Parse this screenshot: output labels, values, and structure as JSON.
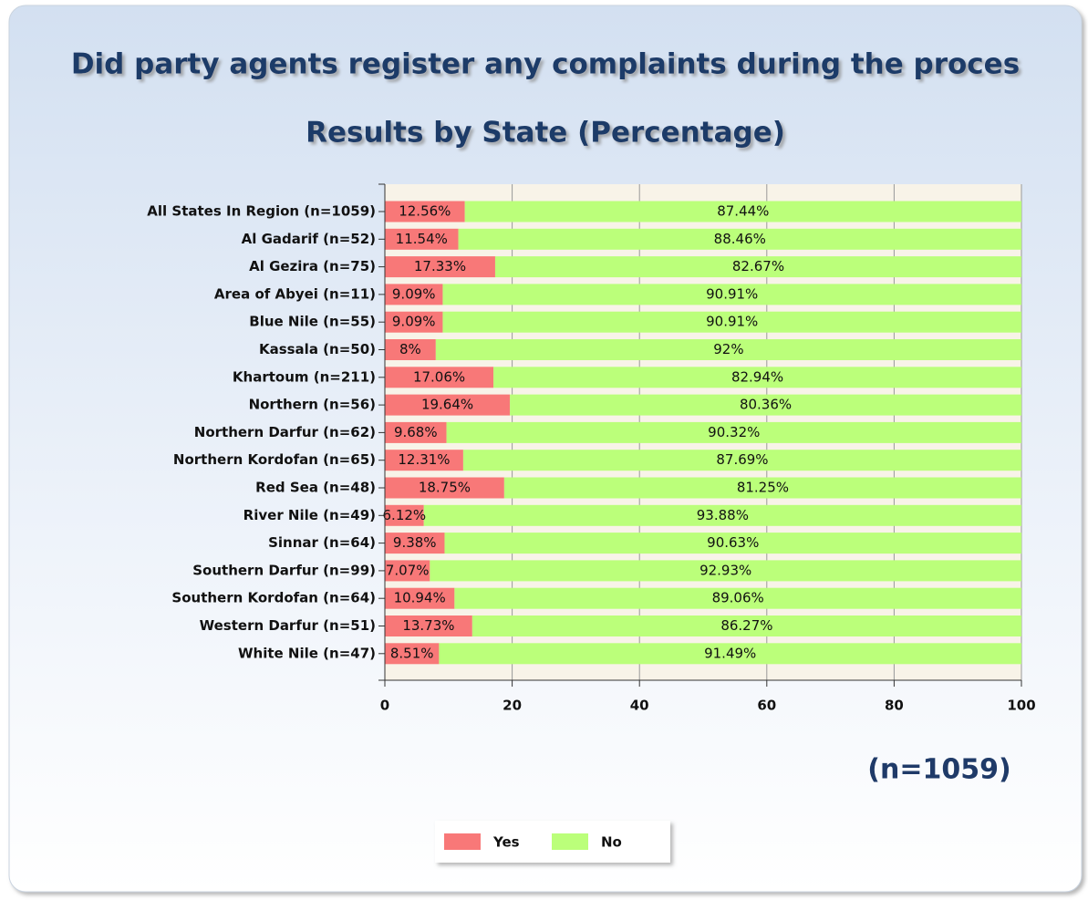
{
  "chart_data": {
    "type": "stacked-bar-horizontal",
    "title": "Did party agents register any complaints during the proces",
    "subtitle": "Results by State (Percentage)",
    "annotation": "(n=1059)",
    "categories": [
      "All States In Region (n=1059)",
      "Al Gadarif (n=52)",
      "Al Gezira (n=75)",
      "Area of Abyei (n=11)",
      "Blue Nile (n=55)",
      "Kassala (n=50)",
      "Khartoum (n=211)",
      "Northern (n=56)",
      "Northern Darfur (n=62)",
      "Northern Kordofan (n=65)",
      "Red Sea (n=48)",
      "River Nile (n=49)",
      "Sinnar (n=64)",
      "Southern Darfur (n=99)",
      "Southern Kordofan (n=64)",
      "Western Darfur (n=51)",
      "White Nile (n=47)"
    ],
    "series": [
      {
        "name": "Yes",
        "color": "#f87878",
        "values": [
          12.56,
          11.54,
          17.33,
          9.09,
          9.09,
          8,
          17.06,
          19.64,
          9.68,
          12.31,
          18.75,
          6.12,
          9.38,
          7.07,
          10.94,
          13.73,
          8.51
        ],
        "value_labels": [
          "12.56%",
          "11.54%",
          "17.33%",
          "9.09%",
          "9.09%",
          "8%",
          "17.06%",
          "19.64%",
          "9.68%",
          "12.31%",
          "18.75%",
          "6.12%",
          "9.38%",
          "7.07%",
          "10.94%",
          "13.73%",
          "8.51%"
        ]
      },
      {
        "name": "No",
        "color": "#bbff7a",
        "values": [
          87.44,
          88.46,
          82.67,
          90.91,
          90.91,
          92,
          82.94,
          80.36,
          90.32,
          87.69,
          81.25,
          93.88,
          90.63,
          92.93,
          89.06,
          86.27,
          91.49
        ],
        "value_labels": [
          "87.44%",
          "88.46%",
          "82.67%",
          "90.91%",
          "90.91%",
          "92%",
          "82.94%",
          "80.36%",
          "90.32%",
          "87.69%",
          "81.25%",
          "93.88%",
          "90.63%",
          "92.93%",
          "89.06%",
          "86.27%",
          "91.49%"
        ]
      }
    ],
    "xlim": [
      0,
      100
    ],
    "xticks": [
      0,
      20,
      40,
      60,
      80,
      100
    ],
    "grid": true,
    "legend": "bottom"
  }
}
